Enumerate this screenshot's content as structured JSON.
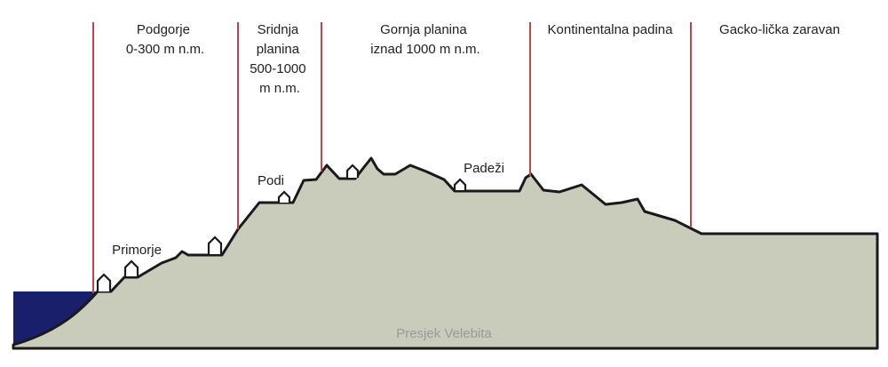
{
  "diagram": {
    "caption": "Presjek Velebita",
    "zones": [
      {
        "lines": [
          "Podgorje",
          "0-300 m n.m."
        ]
      },
      {
        "lines": [
          "Sridnja",
          "planina",
          "500-1000",
          "m n.m."
        ]
      },
      {
        "lines": [
          "Gornja planina",
          "iznad 1000 m n.m."
        ]
      },
      {
        "lines": [
          "Kontinentalna padina"
        ]
      },
      {
        "lines": [
          "Gacko-lička zaravan"
        ]
      }
    ],
    "places": [
      {
        "label": "Primorje"
      },
      {
        "label": "Podi"
      },
      {
        "label": "Padeži"
      }
    ]
  },
  "colors": {
    "sea": "#1a1f6b",
    "terrain": "#c9cbbb",
    "outline": "#1a1a1a",
    "divider": "#b5484a",
    "caption": "#9a9a9a"
  }
}
